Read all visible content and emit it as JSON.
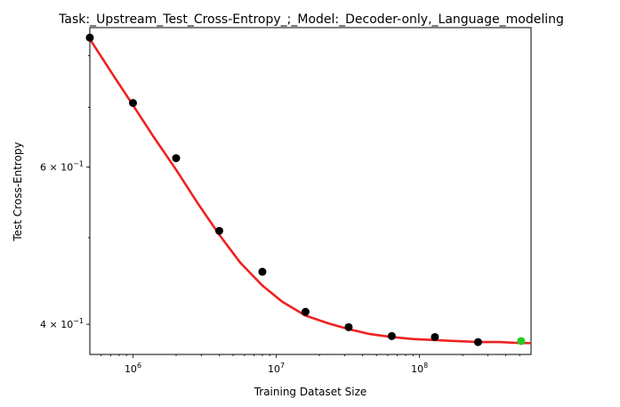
{
  "chart_data": {
    "type": "scatter",
    "title": "Task:_Upstream_Test_Cross-Entropy_;_Model:_Decoder-only,_Language_modeling",
    "xlabel": "Training Dataset Size",
    "ylabel": "Test Cross-Entropy",
    "x_scale": "log",
    "y_scale": "log",
    "xlim": [
      500000,
      600000000
    ],
    "ylim": [
      0.37,
      0.86
    ],
    "grid": false,
    "x_ticks": [
      {
        "value": 1000000,
        "base": "10",
        "exp": "6"
      },
      {
        "value": 10000000,
        "base": "10",
        "exp": "7"
      },
      {
        "value": 100000000,
        "base": "10",
        "exp": "8"
      }
    ],
    "y_ticks": [
      {
        "value": 0.6,
        "base": "6 × 10",
        "exp": "−1"
      },
      {
        "value": 0.4,
        "base": "4 × 10",
        "exp": "−1"
      }
    ],
    "series": [
      {
        "role": "observed",
        "color": "#000000",
        "x": [
          500000,
          1000000,
          2000000,
          4000000,
          8000000,
          16000000,
          32000000,
          64000000,
          128000000,
          256000000
        ],
        "y": [
          0.838,
          0.708,
          0.614,
          0.509,
          0.458,
          0.413,
          0.397,
          0.388,
          0.387,
          0.382
        ]
      },
      {
        "role": "extrapolated",
        "color": "#22cc22",
        "x": [
          512000000
        ],
        "y": [
          0.383
        ]
      },
      {
        "role": "fit",
        "type": "line",
        "color": "#ee2222",
        "x": [
          500000,
          700000,
          1000000,
          1400000,
          2000000,
          2800000,
          4000000,
          5600000,
          8000000,
          11000000,
          16000000,
          23000000,
          32000000,
          45000000,
          64000000,
          90000000,
          128000000,
          180000000,
          256000000,
          360000000,
          512000000,
          600000000
        ],
        "y": [
          0.835,
          0.768,
          0.704,
          0.648,
          0.596,
          0.548,
          0.504,
          0.469,
          0.442,
          0.424,
          0.409,
          0.401,
          0.395,
          0.39,
          0.387,
          0.385,
          0.384,
          0.383,
          0.382,
          0.382,
          0.381,
          0.381
        ]
      }
    ]
  }
}
